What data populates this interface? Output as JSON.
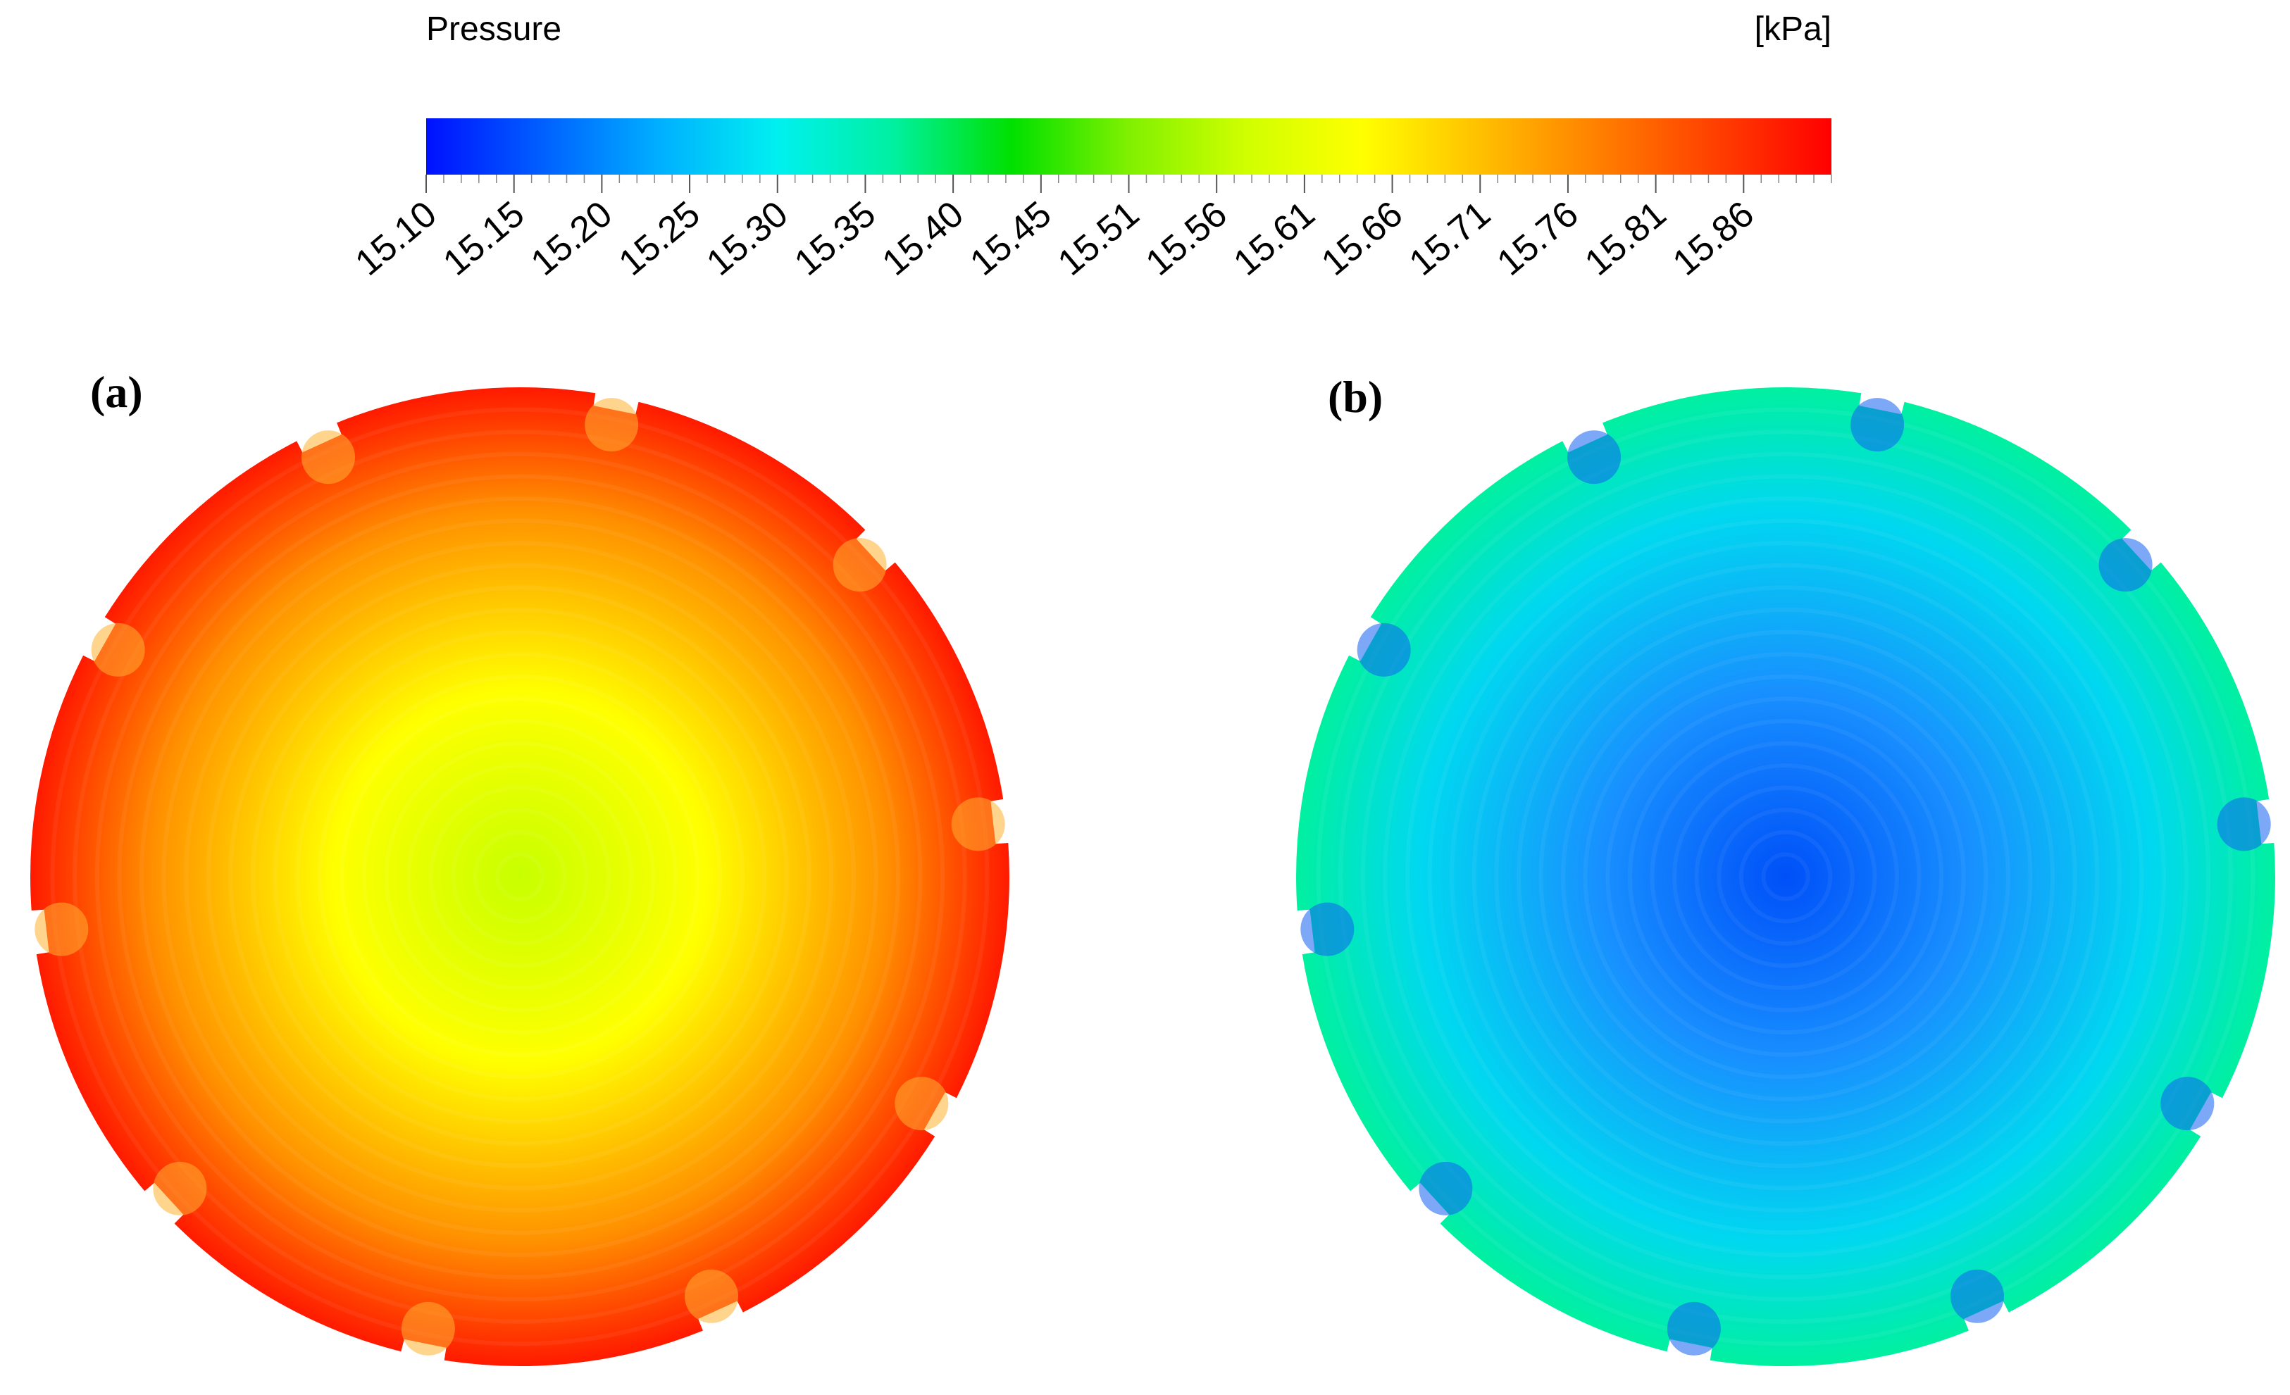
{
  "legend": {
    "title": "Pressure",
    "unit": "[kPa]",
    "ticks": [
      "15.10",
      "15.15",
      "15.20",
      "15.25",
      "15.30",
      "15.35",
      "15.40",
      "15.45",
      "15.51",
      "15.56",
      "15.61",
      "15.66",
      "15.71",
      "15.76",
      "15.81",
      "15.86"
    ],
    "colormap": [
      "#0010ff",
      "#0060ff",
      "#00b0ff",
      "#00f0f0",
      "#00f0a0",
      "#00e000",
      "#80f000",
      "#d0ff00",
      "#ffff00",
      "#ffc000",
      "#ff8000",
      "#ff4000",
      "#ff0000"
    ]
  },
  "panels": [
    {
      "label": "(a)",
      "colors": {
        "center": "#c8ff00",
        "mid": "#ffff00",
        "outer": "#ff9000",
        "rim": "#ff1a00",
        "notch": "#ffb030"
      }
    },
    {
      "label": "(b)",
      "colors": {
        "center": "#0050f8",
        "mid": "#1890ff",
        "outer": "#00d8f0",
        "rim": "#00f0a0",
        "notch": "#1060f0"
      }
    }
  ]
}
